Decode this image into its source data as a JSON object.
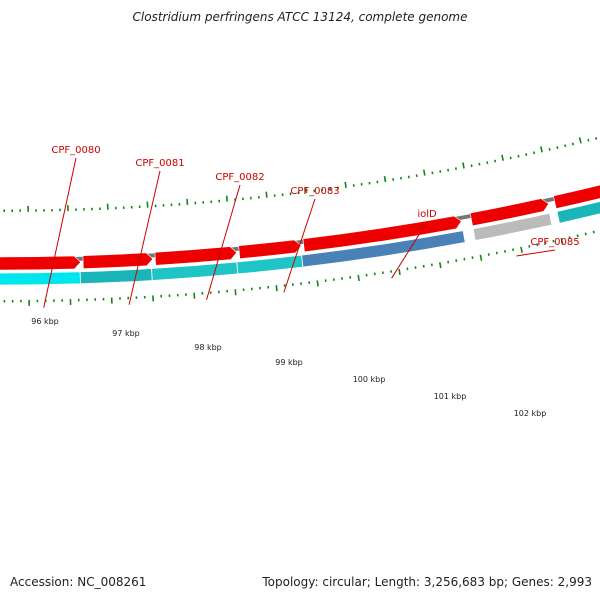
{
  "title": "Clostridium perfringens ATCC 13124, complete genome",
  "footer": {
    "accession": "Accession: NC_008261",
    "stats": "Topology: circular; Length: 3,256,683 bp; Genes: 2,993"
  },
  "colors": {
    "cds_forward": "#ee0000",
    "tick": "#118811",
    "backbone": "#777777",
    "label": "#cc0000"
  },
  "genes": [
    {
      "name": "CPF_0080",
      "color": "#00e6ee"
    },
    {
      "name": "CPF_0081",
      "color": "#1ab5b8"
    },
    {
      "name": "CPF_0082",
      "color": "#1fc4c6"
    },
    {
      "name": "CPF_0083",
      "color": "#1fc4c6"
    },
    {
      "name": "iolD",
      "color": "#4a82b8"
    },
    {
      "name": "CPF_0085",
      "color": "#bbbbbb"
    }
  ],
  "scale_labels": [
    "96 kbp",
    "97 kbp",
    "98 kbp",
    "99 kbp",
    "100 kbp",
    "101 kbp",
    "102 kbp"
  ]
}
